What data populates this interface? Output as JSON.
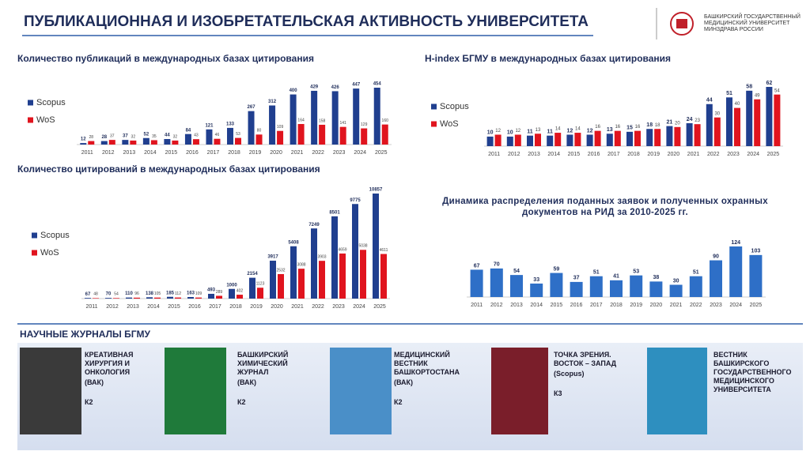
{
  "header": {
    "title": "ПУБЛИКАЦИОННАЯ И ИЗОБРЕТАТЕЛЬСКАЯ АКТИВНОСТЬ УНИВЕРСИТЕТА",
    "logo_lines": [
      "БАШКИРСКИЙ ГОСУДАРСТВЕННЫЙ",
      "МЕДИЦИНСКИЙ УНИВЕРСИТЕТ",
      "МИНЗДРАВА РОССИИ"
    ]
  },
  "chart_data": [
    {
      "type": "bar",
      "title": "Количество публикаций в международных базах цитирования",
      "legend": "left",
      "categories": [
        "2011",
        "2012",
        "2013",
        "2014",
        "2015",
        "2016",
        "2017",
        "2018",
        "2019",
        "2020",
        "2021",
        "2022",
        "2023",
        "2024",
        "2025"
      ],
      "series": [
        {
          "name": "Scopus",
          "color": "#203f8f",
          "values": [
            12,
            28,
            37,
            52,
            44,
            84,
            121,
            133,
            267,
            312,
            400,
            429,
            426,
            447,
            454
          ]
        },
        {
          "name": "WoS",
          "color": "#e0141e",
          "values": [
            28,
            37,
            32,
            35,
            32,
            43,
            46,
            53,
            80,
            109,
            164,
            158,
            141,
            129,
            160
          ]
        }
      ]
    },
    {
      "type": "bar",
      "title": "H-index БГМУ в международных базах цитирования",
      "legend": "left",
      "categories": [
        "2011",
        "2012",
        "2013",
        "2014",
        "2015",
        "2016",
        "2017",
        "2018",
        "2019",
        "2020",
        "2021",
        "2022",
        "2023",
        "2024",
        "2025"
      ],
      "series": [
        {
          "name": "Scopus",
          "color": "#203f8f",
          "values": [
            10,
            10,
            11,
            11,
            12,
            12,
            13,
            15,
            18,
            21,
            24,
            44,
            51,
            58,
            62
          ]
        },
        {
          "name": "WoS",
          "color": "#e0141e",
          "values": [
            12,
            12,
            13,
            14,
            14,
            16,
            16,
            16,
            18,
            20,
            23,
            30,
            40,
            49,
            54
          ]
        }
      ]
    },
    {
      "type": "bar",
      "title": "Количество цитирований в международных базах цитирования",
      "legend": "left",
      "categories": [
        "2011",
        "2012",
        "2013",
        "2014",
        "2015",
        "2016",
        "2017",
        "2018",
        "2019",
        "2020",
        "2021",
        "2022",
        "2023",
        "2024",
        "2025"
      ],
      "series": [
        {
          "name": "Scopus",
          "color": "#203f8f",
          "values": [
            67,
            70,
            110,
            138,
            185,
            163,
            493,
            1000,
            2154,
            3917,
            5408,
            7249,
            8501,
            9775,
            10857
          ]
        },
        {
          "name": "WoS",
          "color": "#e0141e",
          "values": [
            48,
            54,
            96,
            105,
            112,
            109,
            289,
            402,
            1123,
            2532,
            3088,
            3903,
            4659,
            5038,
            4611
          ]
        }
      ]
    },
    {
      "type": "bar",
      "title": [
        "Динамика распределения поданных заявок и полученных охранных",
        "документов  на РИД за 2010-2025 гг."
      ],
      "categories": [
        "2011",
        "2012",
        "2013",
        "2014",
        "2015",
        "2016",
        "2017",
        "2018",
        "2019",
        "2020",
        "2021",
        "2022",
        "2023",
        "2024",
        "2025"
      ],
      "color": "#2e6fc7",
      "values": [
        67,
        70,
        54,
        33,
        59,
        37,
        51,
        41,
        53,
        38,
        30,
        51,
        90,
        124,
        103
      ]
    }
  ],
  "journals": {
    "title": "НАУЧНЫЕ ЖУРНАЛЫ БГМУ",
    "items": [
      {
        "name": "КРЕАТИВНАЯ ХИРУРГИЯ И ОНКОЛОГИЯ",
        "index": "(ВАК)",
        "category": "К2"
      },
      {
        "name": "БАШКИРСКИЙ ХИМИЧЕСКИЙ ЖУРНАЛ",
        "index": "(ВАК)",
        "category": "К2"
      },
      {
        "name": "МЕДИЦИНСКИЙ ВЕСТНИК БАШКОРТОСТАНА",
        "index": "(ВАК)",
        "category": "К2"
      },
      {
        "name": "ТОЧКА ЗРЕНИЯ. ВОСТОК – ЗАПАД",
        "index": "(Scopus)",
        "category": "К3"
      },
      {
        "name": "ВЕСТНИК БАШКИРСКОГО ГОСУДАРСТВЕННОГО МЕДИЦИНСКОГО УНИВЕРСИТЕТА"
      }
    ]
  }
}
